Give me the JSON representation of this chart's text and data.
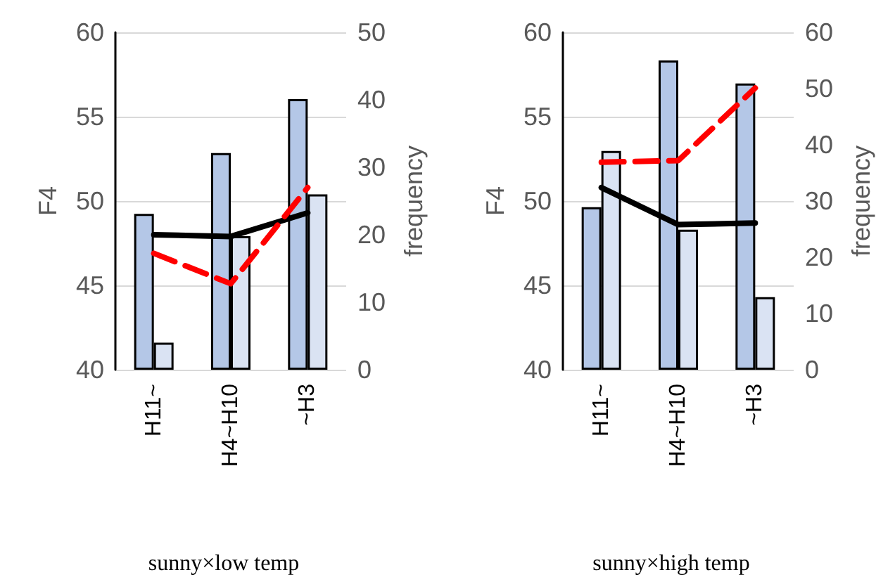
{
  "chart_data": [
    {
      "type": "bar",
      "title": "sunny×low temp",
      "ylabel": "F4",
      "y2label": "frequency",
      "categories": [
        "H11~",
        "H4~H10",
        "~H3"
      ],
      "series": [
        {
          "axis": "y2",
          "color": "#b4c7e7",
          "values": [
            23.1,
            32.1,
            40.1
          ]
        },
        {
          "axis": "y2",
          "color": "#dae3f3",
          "values": [
            4.0,
            19.8,
            26.0
          ]
        },
        {
          "type": "line",
          "color": "#000000",
          "line_style": "solid",
          "values": [
            48.0,
            47.9,
            49.3
          ]
        },
        {
          "type": "line",
          "color": "#ff0000",
          "line_style": "dashed",
          "values": [
            46.9,
            45.1,
            50.8
          ]
        }
      ],
      "ylim": [
        40,
        60
      ],
      "yticks": [
        40,
        45,
        50,
        55,
        60
      ],
      "y2lim": [
        0,
        50
      ],
      "y2ticks": [
        0,
        10,
        20,
        30,
        40,
        50
      ],
      "grid": "y",
      "marker": "none"
    },
    {
      "type": "bar",
      "title": "sunny×high temp",
      "ylabel": "F4",
      "y2label": "frequency",
      "categories": [
        "H11~",
        "H4~H10",
        "~H3"
      ],
      "series": [
        {
          "axis": "y2",
          "color": "#b4c7e7",
          "values": [
            28.9,
            55.0,
            50.9
          ]
        },
        {
          "axis": "y2",
          "color": "#dae3f3",
          "values": [
            38.9,
            24.9,
            12.9
          ]
        },
        {
          "type": "line",
          "color": "#000000",
          "line_style": "solid",
          "values": [
            50.8,
            48.6,
            48.7
          ]
        },
        {
          "type": "line",
          "color": "#ff0000",
          "line_style": "dashed",
          "values": [
            52.3,
            52.4,
            56.7
          ]
        }
      ],
      "ylim": [
        40,
        60
      ],
      "yticks": [
        40,
        45,
        50,
        55,
        60
      ],
      "y2lim": [
        0,
        60
      ],
      "y2ticks": [
        0,
        10,
        20,
        30,
        40,
        50,
        60
      ],
      "grid": "y",
      "marker": "none"
    }
  ]
}
